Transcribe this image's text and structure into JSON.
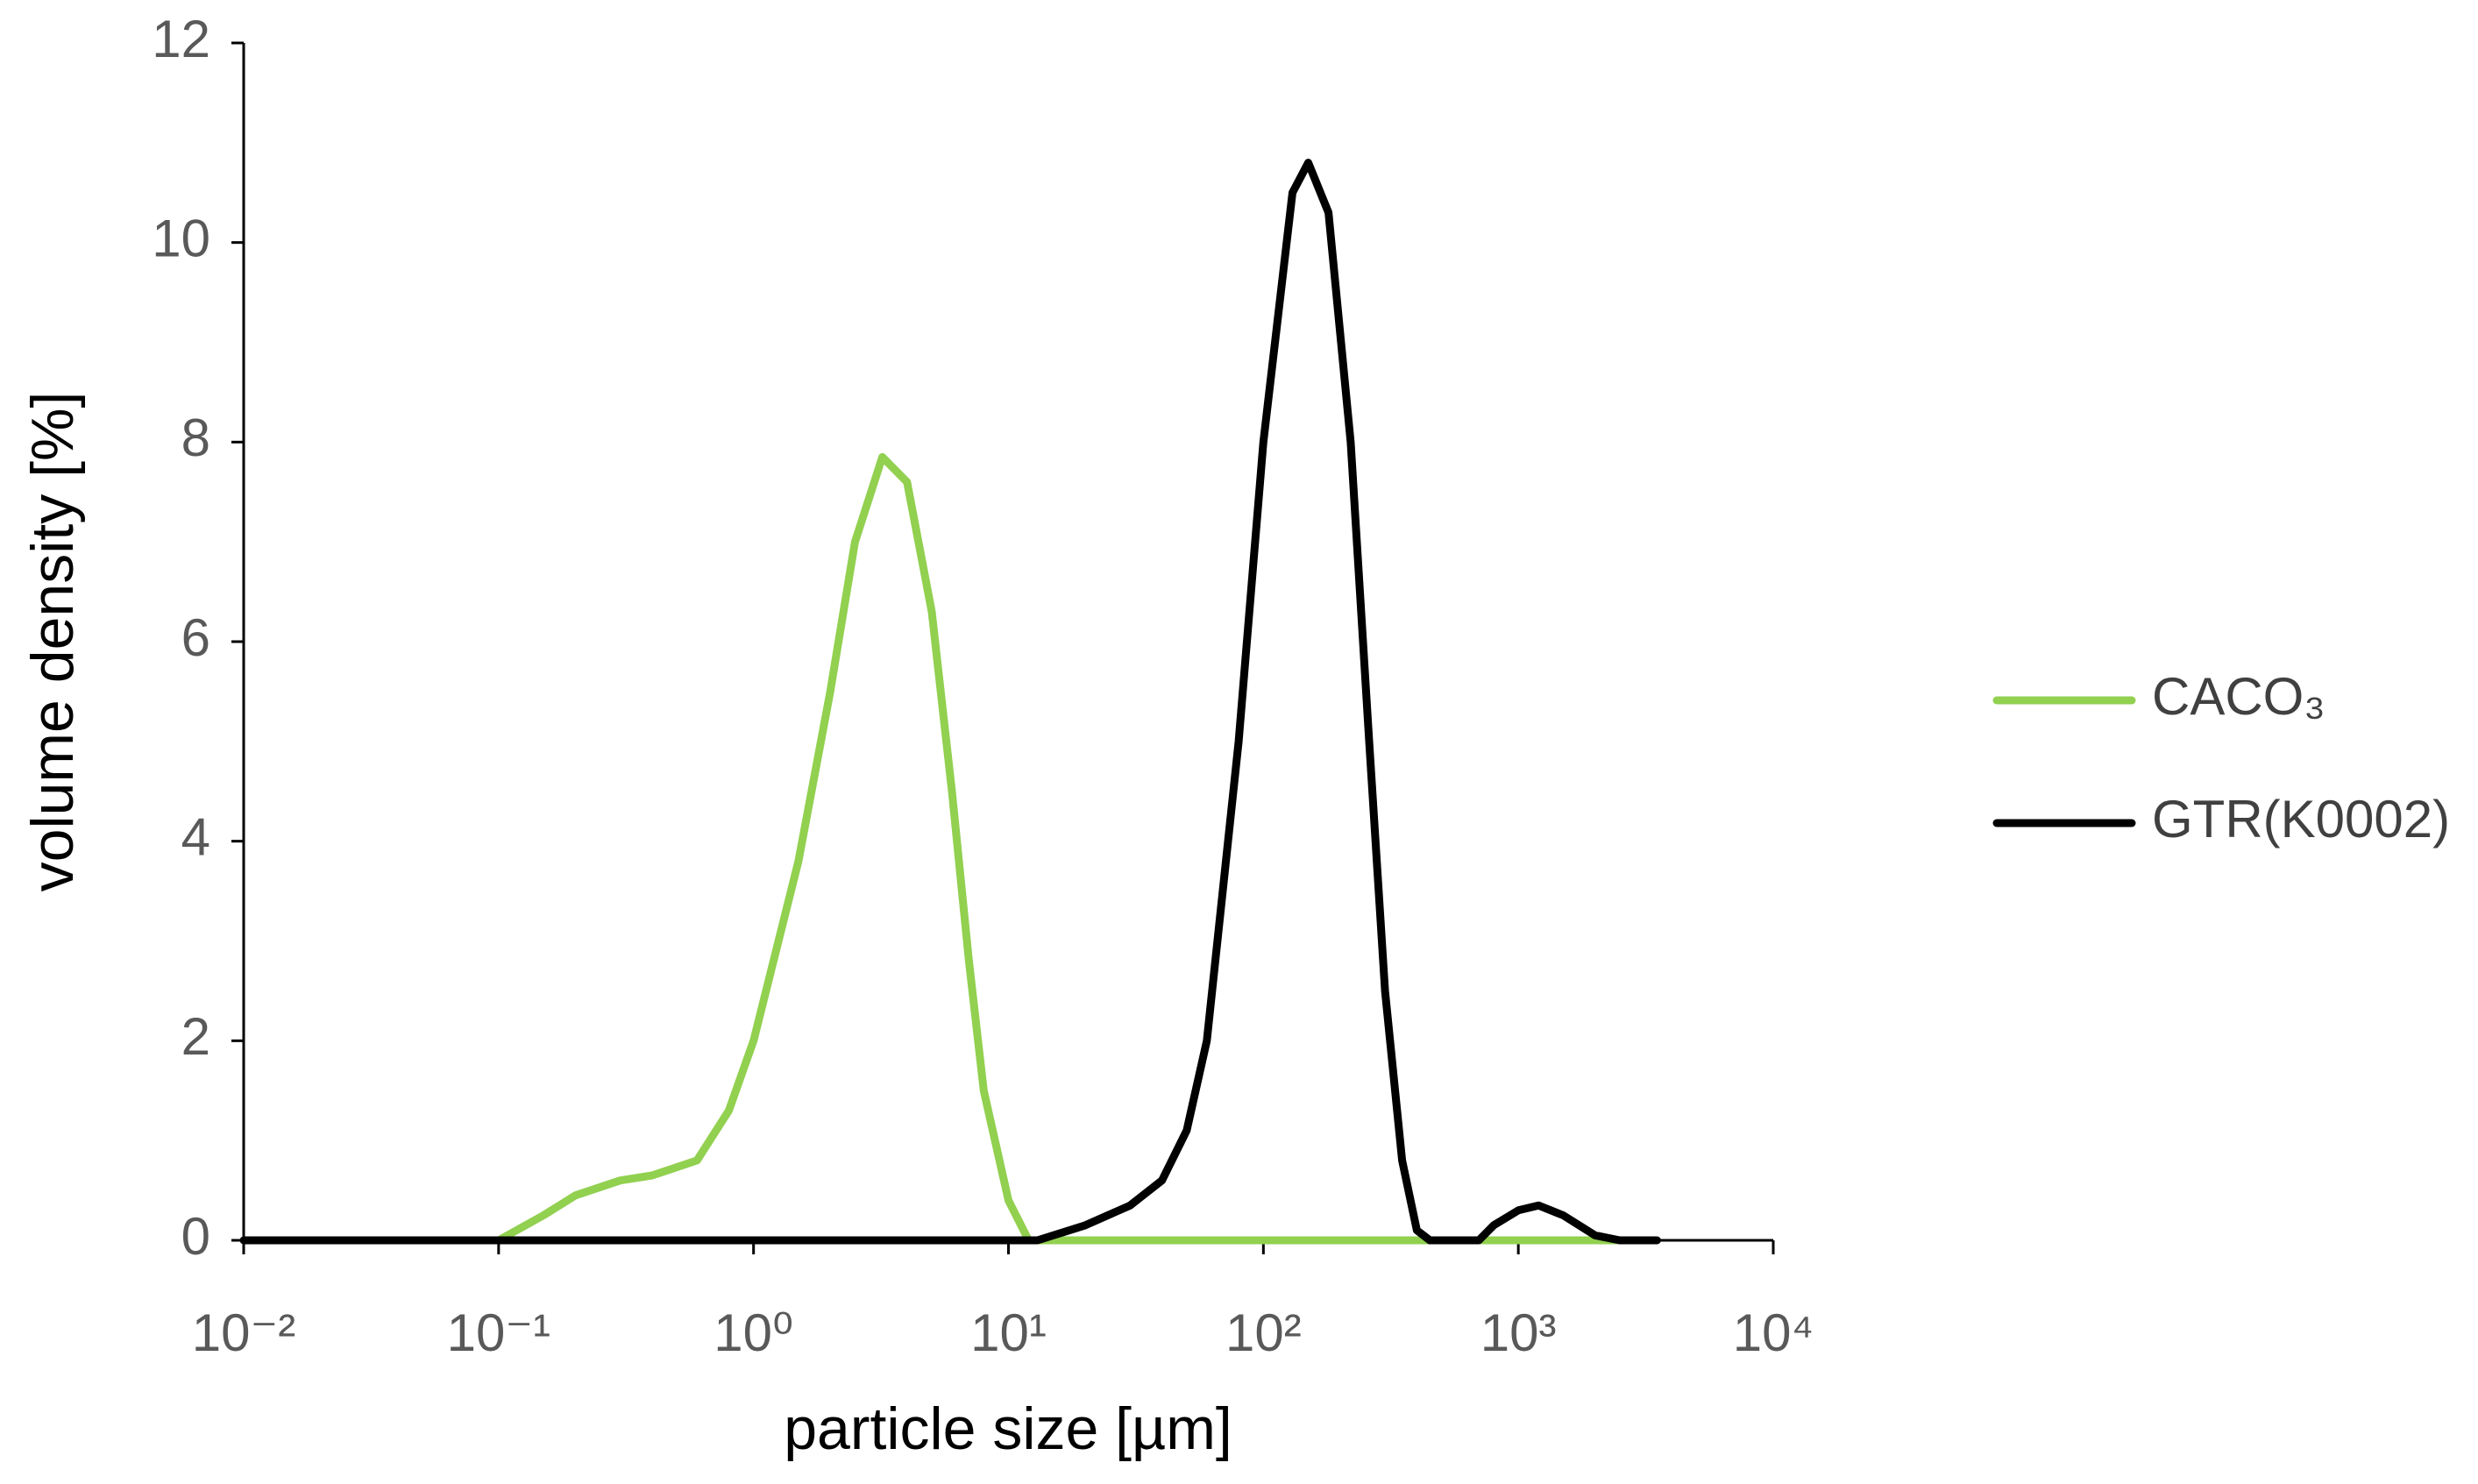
{
  "chart_data": {
    "type": "line",
    "x_label": "particle size [µm]",
    "y_label": "volume density [%]",
    "x_log": true,
    "xlim": [
      0.01,
      10000
    ],
    "xticks": [
      {
        "value": 0.01,
        "label": "10⁻²"
      },
      {
        "value": 0.1,
        "label": "10⁻¹"
      },
      {
        "value": 1,
        "label": "10⁰"
      },
      {
        "value": 10,
        "label": "10¹"
      },
      {
        "value": 100,
        "label": "10²"
      },
      {
        "value": 1000,
        "label": "10³"
      },
      {
        "value": 10000,
        "label": "10⁴"
      }
    ],
    "ylim": [
      0,
      12
    ],
    "yticks": [
      0,
      2,
      4,
      6,
      8,
      10,
      12
    ],
    "grid": false,
    "legend": "right",
    "x": [
      0.01,
      0.1,
      0.15,
      0.2,
      0.3,
      0.4,
      0.6,
      0.8,
      1,
      1.5,
      2,
      2.5,
      3.2,
      4,
      5,
      6,
      7,
      8,
      10,
      12,
      13,
      20,
      30,
      40,
      50,
      60,
      80,
      100,
      130,
      150,
      180,
      220,
      260,
      300,
      350,
      400,
      450,
      700,
      800,
      1000,
      1200,
      1500,
      2000,
      2500,
      3500
    ],
    "series": [
      {
        "name": "CACO₃",
        "color": "#92d050",
        "values": [
          0,
          0,
          0.25,
          0.45,
          0.6,
          0.65,
          0.8,
          1.3,
          2,
          3.8,
          5.5,
          7,
          7.85,
          7.6,
          6.3,
          4.5,
          2.8,
          1.5,
          0.4,
          0,
          0,
          0,
          0,
          0,
          0,
          0,
          0,
          0,
          0,
          0,
          0,
          0,
          0,
          0,
          0,
          0,
          0,
          0,
          0,
          0,
          0,
          0,
          0,
          0,
          null
        ]
      },
      {
        "name": "GTR(K0002)",
        "color": "#000000",
        "values": [
          0,
          0,
          0,
          0,
          0,
          0,
          0,
          0,
          0,
          0,
          0,
          0,
          0,
          0,
          0,
          0,
          0,
          0,
          0,
          0,
          0,
          0.15,
          0.35,
          0.6,
          1.1,
          2,
          5,
          8,
          10.5,
          10.8,
          10.3,
          8,
          5,
          2.5,
          0.8,
          0.1,
          0,
          0,
          0.15,
          0.3,
          0.35,
          0.25,
          0.05,
          0,
          0
        ]
      }
    ]
  }
}
